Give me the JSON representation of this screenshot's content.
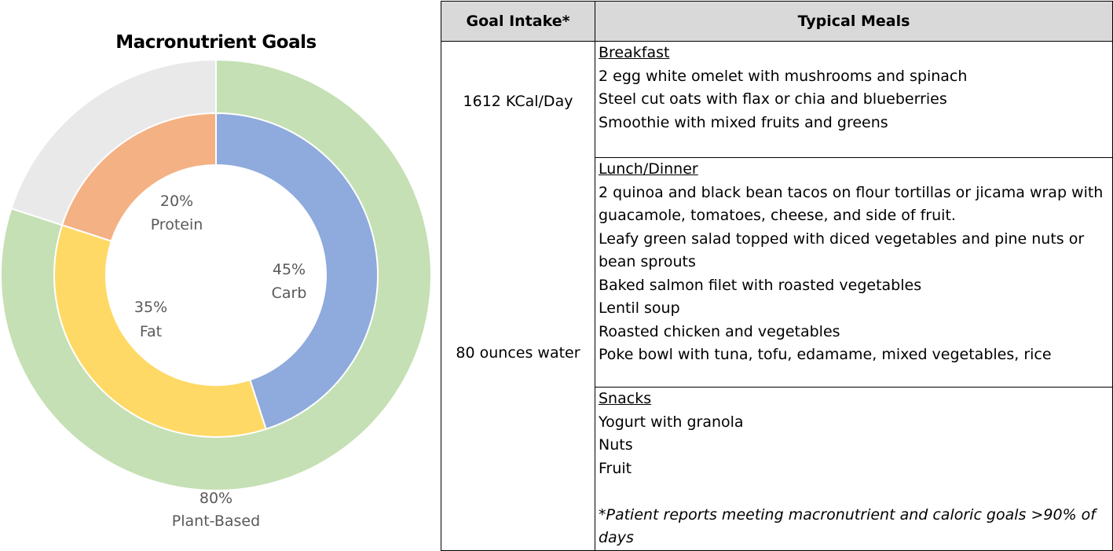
{
  "chart_data": {
    "type": "pie",
    "title": "Macronutrient Goals",
    "rings": [
      {
        "ring": "outer",
        "slices": [
          {
            "value": 80,
            "label_pct": "80%",
            "label_name": "Plant-Based",
            "color": "#c5e0b4"
          },
          {
            "value": 20,
            "label_pct": "",
            "label_name": "",
            "color": "#e9e9e9"
          }
        ]
      },
      {
        "ring": "inner",
        "slices": [
          {
            "value": 45,
            "label_pct": "45%",
            "label_name": "Carb",
            "color": "#8faadc"
          },
          {
            "value": 35,
            "label_pct": "35%",
            "label_name": "Fat",
            "color": "#ffd966"
          },
          {
            "value": 20,
            "label_pct": "20%",
            "label_name": "Protein",
            "color": "#f4b183"
          }
        ]
      }
    ]
  },
  "table": {
    "headers": [
      "Goal Intake*",
      "Typical Meals"
    ],
    "goals": [
      "1612 KCal/Day",
      "80 ounces water"
    ],
    "sections": [
      {
        "heading": "Breakfast",
        "items": [
          "2 egg white omelet with mushrooms and spinach",
          "Steel cut oats with flax or chia and blueberries",
          "Smoothie with mixed fruits and greens"
        ]
      },
      {
        "heading": "Lunch/Dinner",
        "items": [
          "2 quinoa and black bean tacos on flour tortillas or jicama wrap with guacamole, tomatoes, cheese, and side of fruit.",
          "Leafy green salad topped with diced vegetables and pine nuts or bean sprouts",
          "Baked salmon filet with roasted vegetables",
          "Lentil soup",
          "Roasted chicken and vegetables",
          "Poke bowl with tuna, tofu, edamame, mixed vegetables, rice"
        ]
      },
      {
        "heading": "Snacks",
        "items": [
          "Yogurt with granola",
          "Nuts",
          "Fruit"
        ]
      }
    ],
    "footnote": "*Patient reports meeting macronutrient and caloric goals >90% of days"
  }
}
